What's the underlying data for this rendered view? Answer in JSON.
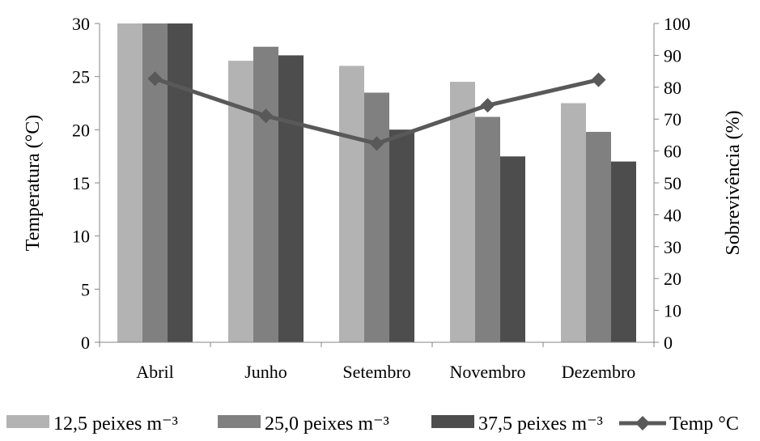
{
  "chart_data": {
    "type": "bar",
    "categories": [
      "Abril",
      "Junho",
      "Setembro",
      "Novembro",
      "Dezembro"
    ],
    "ylabel": "Temperatura (°C)",
    "y2label": "Sobrevivência (%)",
    "ylim": [
      0,
      30
    ],
    "y2lim": [
      0,
      100
    ],
    "yticks": [
      "0",
      "5",
      "10",
      "15",
      "20",
      "25",
      "30"
    ],
    "y2ticks": [
      "0",
      "10",
      "20",
      "30",
      "40",
      "50",
      "60",
      "70",
      "80",
      "90",
      "100"
    ],
    "grid": false,
    "legend_position": "bottom",
    "series": [
      {
        "name": "12,5 peixes m⁻³",
        "type": "bar",
        "axis": "right",
        "color": "#b3b3b3",
        "values": [
          100,
          88.3,
          86.7,
          81.7,
          75
        ]
      },
      {
        "name": "25,0 peixes m⁻³",
        "type": "bar",
        "axis": "right",
        "color": "#808080",
        "values": [
          100,
          92.7,
          78.3,
          70.7,
          66
        ]
      },
      {
        "name": "37,5 peixes m⁻³",
        "type": "bar",
        "axis": "right",
        "color": "#4d4d4d",
        "values": [
          100,
          90,
          66.7,
          58.3,
          56.7
        ]
      },
      {
        "name": "Temp °C",
        "type": "line",
        "axis": "left",
        "color": "#595959",
        "values": [
          24.8,
          21.3,
          18.7,
          22.3,
          24.7
        ]
      }
    ]
  }
}
